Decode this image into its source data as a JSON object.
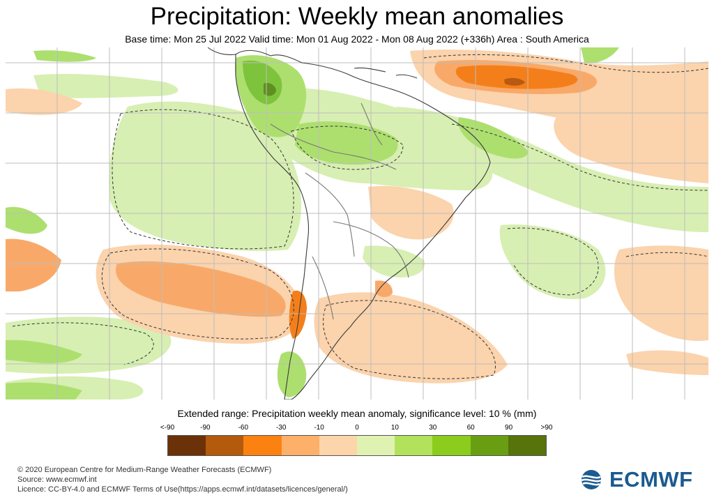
{
  "header": {
    "title": "Precipitation: Weekly mean anomalies",
    "subtitle": "Base time: Mon 25 Jul 2022 Valid time: Mon 01 Aug 2022 - Mon 08 Aug 2022 (+336h) Area : South America"
  },
  "legend": {
    "title": "Extended range: Precipitation weekly mean anomaly, significance level: 10 % (mm)",
    "ticks": [
      "<-90",
      "-90",
      "-60",
      "-30",
      "-10",
      "0",
      "10",
      "30",
      "60",
      "90",
      ">90"
    ],
    "colors": [
      "#6b3108",
      "#b35a0d",
      "#fb8211",
      "#fdb06a",
      "#fdd5aa",
      "#e0f2b1",
      "#b2e25c",
      "#8ccc1c",
      "#6a9e12",
      "#56730c"
    ]
  },
  "map": {
    "colors": {
      "ocean_white": "#ffffff",
      "grid": "#b9b9b9",
      "coast": "#444444",
      "wet_light": "#d7efb2",
      "wet_mid": "#addf6f",
      "wet_strong": "#7ec33c",
      "dry_light": "#fbd3ac",
      "dry_mid": "#f8a969",
      "dry_strong": "#f47f1a",
      "dry_core": "#9b4c11"
    }
  },
  "footer": {
    "copyright": "© 2020 European Centre for Medium-Range Weather Forecasts (ECMWF)",
    "source": "Source: www.ecmwf.int",
    "licence": "Licence: CC-BY-4.0 and ECMWF Terms of Use(https://apps.ecmwf.int/datasets/licences/general/)"
  },
  "logo": {
    "text": "ECMWF",
    "icon": "ecmwf-logo-icon"
  }
}
